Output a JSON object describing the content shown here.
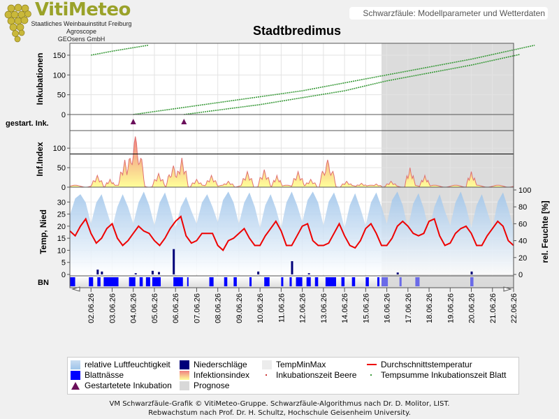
{
  "header": {
    "brand_name": "VitiMeteo",
    "brand_lines": [
      "Staatliches Weinbauinstitut Freiburg",
      "Agroscope",
      "GEOsens GmbH"
    ],
    "badge": "Schwarzfäule: Modellparameter und Wetterdaten"
  },
  "colors": {
    "brand": "#9aa229",
    "humidity": "#9ec4ea",
    "precip": "#00007a",
    "leaf_wetness": "#0000ff",
    "temp_line": "#ee0000",
    "incubation": "#3a9a3a",
    "infection_fill_top": "#f08080",
    "infection_fill_bottom": "#ffff99",
    "infection_line": "#e07070",
    "forecast": "#d8d8d8",
    "marker": "#6a0f5a"
  },
  "chart_data": {
    "type": "line",
    "title": "Stadtbredimus",
    "dates": [
      "02.06.26",
      "03.06.26",
      "04.06.26",
      "05.06.26",
      "06.06.26",
      "07.06.26",
      "08.06.26",
      "09.06.26",
      "10.06.26",
      "11.06.26",
      "12.06.26",
      "13.06.26",
      "14.06.26",
      "15.06.26",
      "16.06.26",
      "17.06.26",
      "18.06.26",
      "19.06.26",
      "20.06.26",
      "21.06.26",
      "22.06.26"
    ],
    "forecast_start": "15.06.26 18:00",
    "panels": {
      "incubation": {
        "ylabel": "Inkubationen",
        "ylim": [
          0,
          180
        ],
        "ticks": [
          "0",
          "50",
          "100",
          "150"
        ],
        "series": [
          {
            "x": [
              1.0,
              2.0,
              3.7
            ],
            "y": [
              150,
              160,
              175
            ]
          },
          {
            "x": [
              3.0,
              7.0,
              11.0,
              15.0,
              19.0,
              22.0
            ],
            "y": [
              0,
              30,
              60,
              100,
              140,
              175
            ]
          },
          {
            "x": [
              5.4,
              9.0,
              13.0,
              15.0,
              19.0,
              21.3
            ],
            "y": [
              0,
              25,
              60,
              85,
              125,
              152
            ]
          }
        ]
      },
      "started": {
        "ylabel": "gestart. Ink.",
        "markers": [
          3.0,
          5.4
        ]
      },
      "infection_index": {
        "ylabel": "Inf.Index",
        "ylim": [
          0,
          145
        ],
        "ticks": [
          "0",
          "50",
          "100"
        ],
        "threshold": 85,
        "peaks": [
          {
            "x": 1.3,
            "y": 30,
            "w": 0.3
          },
          {
            "x": 1.9,
            "y": 20,
            "w": 0.25
          },
          {
            "x": 2.6,
            "y": 70,
            "w": 0.3
          },
          {
            "x": 3.1,
            "y": 130,
            "w": 0.45
          },
          {
            "x": 4.2,
            "y": 35,
            "w": 0.3
          },
          {
            "x": 4.9,
            "y": 55,
            "w": 0.35
          },
          {
            "x": 5.3,
            "y": 75,
            "w": 0.3
          },
          {
            "x": 6.0,
            "y": 20,
            "w": 0.3
          },
          {
            "x": 6.7,
            "y": 30,
            "w": 0.3
          },
          {
            "x": 7.5,
            "y": 15,
            "w": 0.3
          },
          {
            "x": 8.4,
            "y": 40,
            "w": 0.3
          },
          {
            "x": 9.2,
            "y": 45,
            "w": 0.3
          },
          {
            "x": 9.8,
            "y": 30,
            "w": 0.25
          },
          {
            "x": 10.8,
            "y": 40,
            "w": 0.3
          },
          {
            "x": 11.4,
            "y": 20,
            "w": 0.3
          },
          {
            "x": 12.2,
            "y": 70,
            "w": 0.4
          },
          {
            "x": 13.1,
            "y": 15,
            "w": 0.3
          },
          {
            "x": 13.8,
            "y": 10,
            "w": 0.3
          },
          {
            "x": 14.5,
            "y": 8,
            "w": 0.3
          },
          {
            "x": 15.2,
            "y": 15,
            "w": 0.3
          },
          {
            "x": 16.1,
            "y": 50,
            "w": 0.25
          },
          {
            "x": 16.8,
            "y": 30,
            "w": 0.25
          },
          {
            "x": 19.0,
            "y": 40,
            "w": 0.25
          }
        ]
      },
      "weather": {
        "ylabel_left": "Temp, Nied",
        "ylabel_right": "rel. Feuchte [%]",
        "ylim_left": [
          0,
          35
        ],
        "ylim_right": [
          0,
          100
        ],
        "ticks_left": [
          "0",
          "5",
          "10",
          "15",
          "20",
          "25",
          "30"
        ],
        "ticks_right": [
          "0",
          "20",
          "40",
          "60",
          "80",
          "100"
        ],
        "temp_mean": {
          "x_start": 0.0,
          "x_step": 0.25,
          "y": [
            18,
            16,
            20,
            23,
            17,
            13,
            15,
            19,
            21,
            15,
            12,
            14,
            17,
            20,
            18,
            17,
            14,
            12,
            15,
            19,
            22,
            24,
            16,
            13,
            14,
            17,
            17,
            17,
            12,
            10,
            14,
            15,
            17,
            19,
            15,
            12,
            12,
            16,
            19,
            22,
            18,
            12,
            12,
            16,
            20,
            21,
            14,
            12,
            12,
            13,
            17,
            21,
            16,
            12,
            11,
            14,
            19,
            21,
            17,
            12,
            12,
            15,
            20,
            22,
            20,
            17,
            16,
            17,
            22,
            23,
            16,
            12,
            13,
            17,
            19,
            20,
            17,
            12,
            12,
            16,
            19,
            22,
            20,
            14,
            12,
            16,
            20,
            22,
            15,
            10,
            16,
            19,
            22,
            25,
            18,
            14,
            16,
            23,
            27,
            22,
            16,
            15,
            20,
            25,
            27,
            19,
            15,
            16,
            23,
            27,
            18,
            14,
            17,
            24,
            28,
            22,
            15,
            15,
            23,
            28,
            20,
            15,
            17,
            25,
            29,
            20,
            18,
            18,
            25,
            30,
            23,
            16,
            16,
            24,
            27,
            19
          ]
        },
        "humidity": {
          "x_start": 0.0,
          "x_step": 0.25,
          "y": [
            70,
            90,
            95,
            85,
            60,
            85,
            95,
            75,
            55,
            80,
            95,
            80,
            60,
            85,
            98,
            82,
            58,
            85,
            97,
            78,
            55,
            80,
            92,
            75,
            60,
            85,
            95,
            80,
            62,
            88,
            98,
            85,
            60,
            85,
            97,
            80,
            55,
            82,
            95,
            78,
            55,
            85,
            98,
            82,
            62,
            88,
            98,
            85,
            58,
            86,
            97,
            80,
            55,
            82,
            96,
            78,
            58,
            85,
            97,
            80,
            60,
            88,
            98,
            82,
            55,
            84,
            96,
            78,
            52,
            80,
            95,
            75,
            58,
            85,
            98,
            80,
            55,
            82,
            95,
            75,
            55,
            86,
            97,
            78,
            55,
            82,
            95,
            72,
            50,
            80,
            93,
            70,
            48,
            82,
            95,
            70,
            45,
            80,
            94,
            68,
            45,
            82,
            96,
            70,
            42,
            80,
            95,
            68,
            40,
            78,
            94,
            66,
            40,
            80,
            95,
            66,
            38,
            78,
            94,
            65,
            40,
            80,
            95,
            66,
            40,
            82,
            96,
            68,
            38,
            80,
            95,
            65,
            40,
            82,
            95,
            68
          ]
        },
        "precip": [
          {
            "x": 1.3,
            "y": 2.0
          },
          {
            "x": 1.5,
            "y": 1.2
          },
          {
            "x": 3.1,
            "y": 0.5
          },
          {
            "x": 3.9,
            "y": 1.5
          },
          {
            "x": 4.2,
            "y": 1.0
          },
          {
            "x": 4.9,
            "y": 10.5
          },
          {
            "x": 8.9,
            "y": 1.2
          },
          {
            "x": 10.5,
            "y": 5.5
          },
          {
            "x": 11.3,
            "y": 0.5
          },
          {
            "x": 15.5,
            "y": 0.8
          },
          {
            "x": 19.0,
            "y": 1.2
          }
        ]
      },
      "leaf_wetness": {
        "ylabel": "BN",
        "intervals": [
          [
            0.0,
            0.25
          ],
          [
            0.9,
            1.1
          ],
          [
            1.3,
            1.45
          ],
          [
            1.6,
            2.3
          ],
          [
            2.8,
            3.1
          ],
          [
            3.3,
            3.45
          ],
          [
            3.6,
            3.8
          ],
          [
            3.9,
            4.3
          ],
          [
            4.9,
            5.35
          ],
          [
            5.55,
            5.6
          ],
          [
            6.6,
            6.8
          ],
          [
            7.3,
            7.45
          ],
          [
            7.75,
            7.9
          ],
          [
            8.5,
            8.6
          ],
          [
            9.2,
            9.45
          ],
          [
            10.0,
            10.1
          ],
          [
            10.4,
            10.5
          ],
          [
            10.7,
            11.0
          ],
          [
            11.2,
            11.4
          ],
          [
            11.6,
            11.75
          ],
          [
            12.1,
            12.6
          ],
          [
            12.85,
            13.0
          ],
          [
            13.35,
            13.5
          ],
          [
            14.0,
            14.15
          ],
          [
            14.55,
            14.65
          ],
          [
            14.75,
            15.05
          ],
          [
            15.6,
            15.7
          ],
          [
            16.35,
            16.55
          ],
          [
            18.95,
            19.1
          ]
        ]
      }
    },
    "legend": [
      {
        "label": "relative Luftfeuchtigkeit",
        "key": "humidity"
      },
      {
        "label": "Niederschläge",
        "key": "precip"
      },
      {
        "label": "TempMinMax",
        "key": "tempminmax"
      },
      {
        "label": "Durchschnittstemperatur",
        "key": "tempmean"
      },
      {
        "label": "Blattnässe",
        "key": "leafwet"
      },
      {
        "label": "Infektionsindex",
        "key": "infindex"
      },
      {
        "label": "Inkubationszeit Beere",
        "key": "ink_beere"
      },
      {
        "label": "Tempsumme Inkubationszeit Blatt",
        "key": "ink_blatt"
      },
      {
        "label": "Gestartetete Inkubation",
        "key": "started"
      },
      {
        "label": "Prognose",
        "key": "forecast"
      }
    ]
  },
  "footer": {
    "line1": "VM Schwarzfäule-Grafik © VitiMeteo-Gruppe. Schwarzfäule-Algorithmus nach Dr. D. Molitor, LIST.",
    "line2": "Rebwachstum nach Prof. Dr. H. Schultz, Hochschule Geisenheim University."
  }
}
